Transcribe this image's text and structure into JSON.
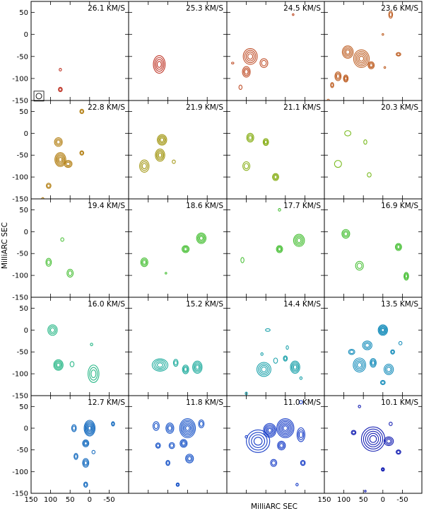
{
  "chart_data": {
    "type": "contour",
    "title": "",
    "xlabel": "MilliARC SEC",
    "ylabel": "MilliARC SEC",
    "xlim": [
      150,
      -100
    ],
    "ylim": [
      -150,
      75
    ],
    "xticks": [
      "150",
      "100",
      "50",
      "0",
      "-50"
    ],
    "xtick_values": [
      150,
      100,
      50,
      0,
      -50
    ],
    "yticks": [
      "50",
      "0",
      "-50",
      "-100",
      "-150"
    ],
    "ytick_values": [
      50,
      0,
      -50,
      -100,
      -150
    ],
    "beam": {
      "x": 130,
      "y": -140,
      "r": 7
    },
    "panels": [
      {
        "label": "26.1 KM/S",
        "color": "#c0392b",
        "components": [
          [
            75,
            -80,
            3,
            3,
            1
          ],
          [
            75,
            -125,
            5,
            5,
            2
          ]
        ]
      },
      {
        "label": "25.3 KM/S",
        "color": "#c0392b",
        "components": [
          [
            72,
            -68,
            15,
            20,
            4
          ]
        ]
      },
      {
        "label": "24.5 KM/S",
        "color": "#c0502b",
        "components": [
          [
            90,
            -50,
            18,
            18,
            4
          ],
          [
            55,
            -65,
            10,
            10,
            2
          ],
          [
            100,
            -85,
            10,
            12,
            3
          ],
          [
            115,
            -120,
            4,
            5,
            1
          ],
          [
            -20,
            45,
            2,
            2,
            1
          ],
          [
            135,
            -65,
            3,
            2,
            1
          ]
        ]
      },
      {
        "label": "23.6 KM/S",
        "color": "#c0642b",
        "components": [
          [
            90,
            -40,
            14,
            14,
            4
          ],
          [
            55,
            -55,
            20,
            20,
            5
          ],
          [
            115,
            -95,
            8,
            10,
            3
          ],
          [
            95,
            -100,
            6,
            8,
            3
          ],
          [
            30,
            -70,
            8,
            8,
            3
          ],
          [
            130,
            -115,
            4,
            6,
            2
          ],
          [
            -20,
            45,
            5,
            8,
            2
          ],
          [
            -40,
            -45,
            6,
            4,
            2
          ],
          [
            140,
            -150,
            3,
            3,
            1
          ],
          [
            0,
            0,
            2,
            2,
            1
          ],
          [
            -5,
            -75,
            2,
            2,
            1
          ]
        ]
      },
      {
        "label": "22.8 KM/S",
        "color": "#b5831a",
        "components": [
          [
            75,
            -60,
            14,
            16,
            5
          ],
          [
            80,
            -20,
            10,
            10,
            3
          ],
          [
            55,
            -70,
            10,
            8,
            3
          ],
          [
            20,
            -45,
            5,
            5,
            2
          ],
          [
            20,
            50,
            5,
            5,
            2
          ],
          [
            105,
            -120,
            6,
            6,
            2
          ],
          [
            120,
            -150,
            3,
            3,
            1
          ]
        ]
      },
      {
        "label": "21.9 KM/S",
        "color": "#a59a1a",
        "components": [
          [
            70,
            -50,
            12,
            14,
            4
          ],
          [
            65,
            -15,
            12,
            12,
            4
          ],
          [
            110,
            -75,
            12,
            14,
            3
          ],
          [
            35,
            -65,
            4,
            4,
            1
          ]
        ]
      },
      {
        "label": "21.1 KM/S",
        "color": "#8ab01c",
        "components": [
          [
            90,
            -10,
            9,
            10,
            3
          ],
          [
            50,
            -20,
            7,
            8,
            3
          ],
          [
            100,
            -75,
            9,
            10,
            2
          ],
          [
            25,
            -100,
            8,
            8,
            3
          ]
        ]
      },
      {
        "label": "20.3 KM/S",
        "color": "#7cbc24",
        "components": [
          [
            90,
            0,
            8,
            6,
            1
          ],
          [
            45,
            -20,
            4,
            5,
            1
          ],
          [
            115,
            -70,
            9,
            8,
            1
          ],
          [
            35,
            -95,
            5,
            5,
            1
          ]
        ]
      },
      {
        "label": "19.4 KM/S",
        "color": "#4cc13a",
        "components": [
          [
            105,
            -70,
            7,
            9,
            2
          ],
          [
            50,
            -95,
            8,
            9,
            2
          ],
          [
            70,
            -18,
            4,
            4,
            1
          ]
        ]
      },
      {
        "label": "18.6 KM/S",
        "color": "#4cc13a",
        "components": [
          [
            110,
            -70,
            9,
            10,
            3
          ],
          [
            -35,
            -15,
            12,
            12,
            4
          ],
          [
            5,
            -40,
            9,
            8,
            3
          ],
          [
            55,
            -95,
            2,
            2,
            1
          ]
        ]
      },
      {
        "label": "17.7 KM/S",
        "color": "#4cc13a",
        "components": [
          [
            -35,
            -20,
            14,
            14,
            4
          ],
          [
            15,
            -40,
            8,
            8,
            3
          ],
          [
            110,
            -65,
            4,
            6,
            1
          ],
          [
            15,
            50,
            3,
            3,
            1
          ]
        ]
      },
      {
        "label": "16.9 KM/S",
        "color": "#4cc13a",
        "components": [
          [
            95,
            -5,
            10,
            10,
            3
          ],
          [
            60,
            -78,
            10,
            10,
            2
          ],
          [
            -40,
            -35,
            8,
            8,
            3
          ],
          [
            -60,
            -102,
            6,
            9,
            3
          ]
        ]
      },
      {
        "label": "16.0 KM/S",
        "color": "#2ab888",
        "components": [
          [
            95,
            0,
            12,
            12,
            3
          ],
          [
            80,
            -80,
            12,
            12,
            4
          ],
          [
            45,
            -78,
            5,
            6,
            1
          ],
          [
            -10,
            -100,
            14,
            20,
            3
          ],
          [
            -5,
            -33,
            3,
            3,
            1
          ]
        ]
      },
      {
        "label": "15.2 KM/S",
        "color": "#25aea0",
        "components": [
          [
            70,
            -80,
            20,
            14,
            4
          ],
          [
            30,
            -75,
            6,
            8,
            2
          ],
          [
            5,
            -90,
            8,
            10,
            3
          ],
          [
            -25,
            -85,
            12,
            14,
            4
          ]
        ]
      },
      {
        "label": "14.4 KM/S",
        "color": "#1fa3ac",
        "components": [
          [
            55,
            -90,
            18,
            16,
            4
          ],
          [
            25,
            -70,
            5,
            6,
            1
          ],
          [
            -25,
            -85,
            12,
            14,
            4
          ],
          [
            0,
            -65,
            5,
            6,
            2
          ],
          [
            45,
            0,
            6,
            3,
            1
          ],
          [
            -5,
            -40,
            3,
            4,
            1
          ],
          [
            100,
            -145,
            3,
            3,
            1
          ],
          [
            -40,
            -110,
            3,
            3,
            1
          ],
          [
            60,
            -55,
            3,
            3,
            1
          ]
        ]
      },
      {
        "label": "13.5 KM/S",
        "color": "#1a8fbc",
        "components": [
          [
            0,
            0,
            12,
            12,
            5
          ],
          [
            40,
            -35,
            12,
            10,
            3
          ],
          [
            60,
            -80,
            16,
            16,
            4
          ],
          [
            25,
            -75,
            8,
            10,
            3
          ],
          [
            -15,
            -90,
            12,
            12,
            3
          ],
          [
            0,
            -120,
            6,
            5,
            2
          ],
          [
            -25,
            -50,
            5,
            5,
            2
          ],
          [
            80,
            -50,
            8,
            6,
            2
          ],
          [
            -45,
            -30,
            4,
            4,
            1
          ]
        ]
      },
      {
        "label": "12.7 KM/S",
        "color": "#1a6ec0",
        "components": [
          [
            0,
            0,
            14,
            18,
            6
          ],
          [
            40,
            0,
            6,
            8,
            2
          ],
          [
            10,
            -35,
            8,
            8,
            3
          ],
          [
            -10,
            -55,
            4,
            4,
            1
          ],
          [
            35,
            -65,
            5,
            7,
            2
          ],
          [
            10,
            -80,
            8,
            10,
            3
          ],
          [
            10,
            -130,
            5,
            6,
            2
          ],
          [
            -60,
            10,
            4,
            5,
            2
          ]
        ]
      },
      {
        "label": "11.8 KM/S",
        "color": "#1a55c8",
        "components": [
          [
            0,
            0,
            20,
            22,
            6
          ],
          [
            45,
            0,
            10,
            12,
            3
          ],
          [
            80,
            5,
            8,
            10,
            2
          ],
          [
            -35,
            10,
            7,
            9,
            2
          ],
          [
            10,
            -35,
            9,
            9,
            3
          ],
          [
            40,
            -40,
            7,
            7,
            2
          ],
          [
            75,
            -40,
            6,
            6,
            2
          ],
          [
            -5,
            -70,
            10,
            10,
            3
          ],
          [
            50,
            -80,
            5,
            6,
            2
          ],
          [
            25,
            -130,
            4,
            4,
            2
          ]
        ]
      },
      {
        "label": "11.0 KM/S",
        "color": "#1a3fc8",
        "components": [
          [
            0,
            0,
            22,
            22,
            6
          ],
          [
            40,
            -5,
            16,
            16,
            5
          ],
          [
            70,
            -30,
            30,
            26,
            4
          ],
          [
            10,
            -40,
            10,
            10,
            3
          ],
          [
            -40,
            -15,
            10,
            16,
            3
          ],
          [
            30,
            -80,
            8,
            8,
            2
          ],
          [
            -45,
            -80,
            6,
            6,
            2
          ],
          [
            -40,
            60,
            4,
            4,
            1
          ],
          [
            100,
            -20,
            3,
            3,
            1
          ],
          [
            -30,
            -130,
            3,
            3,
            1
          ]
        ]
      },
      {
        "label": "10.1 KM/S",
        "color": "#1a24b4",
        "components": [
          [
            25,
            -25,
            30,
            28,
            5
          ],
          [
            -15,
            -30,
            12,
            10,
            3
          ],
          [
            0,
            -95,
            4,
            4,
            3
          ],
          [
            75,
            -10,
            6,
            5,
            2
          ],
          [
            60,
            50,
            3,
            3,
            1
          ],
          [
            -20,
            10,
            4,
            4,
            1
          ],
          [
            -40,
            -55,
            6,
            5,
            2
          ],
          [
            45,
            -145,
            2,
            2,
            1
          ]
        ]
      }
    ]
  }
}
